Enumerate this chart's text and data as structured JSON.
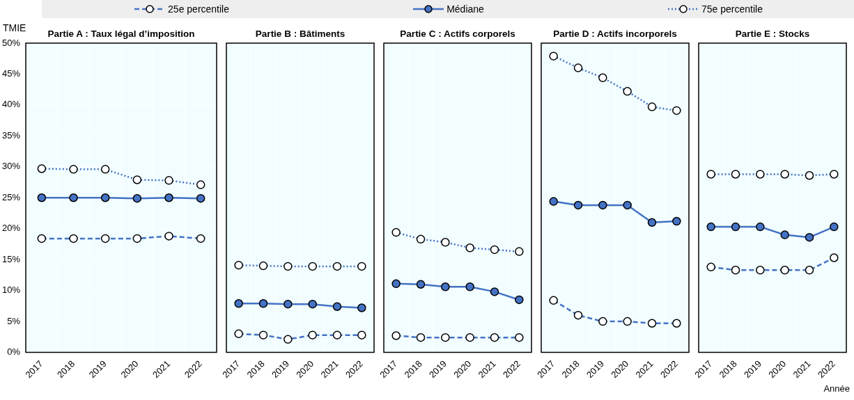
{
  "chart_data": [
    {
      "type": "line",
      "title": "Partie A : Taux légal d’imposition",
      "ylabel": "TMIE",
      "categories": [
        "2017",
        "2018",
        "2019",
        "2020",
        "2021",
        "2022"
      ],
      "legend": "top",
      "marker": "circle",
      "grid": true,
      "ylim": [
        0,
        50
      ],
      "yticks": [
        {
          "value": 0,
          "label": "0%"
        },
        {
          "value": 5,
          "label": "5%"
        },
        {
          "value": 10,
          "label": "10%"
        },
        {
          "value": 15,
          "label": "15%"
        },
        {
          "value": 20,
          "label": "20%"
        },
        {
          "value": 25,
          "label": "25%"
        },
        {
          "value": 30,
          "label": "30%"
        },
        {
          "value": 35,
          "label": "35%"
        },
        {
          "value": 40,
          "label": "40%"
        },
        {
          "value": 45,
          "label": "45%"
        },
        {
          "value": 50,
          "label": "50%"
        }
      ],
      "series": [
        {
          "name": "25e percentile",
          "color": "#4472c4",
          "line_style": "dashed",
          "values": [
            18.4,
            18.4,
            18.4,
            18.4,
            18.8,
            18.4
          ]
        },
        {
          "name": "Médiane",
          "color": "#4472c4",
          "line_style": "solid",
          "values": [
            25.0,
            25.0,
            25.0,
            24.9,
            25.0,
            24.9
          ]
        },
        {
          "name": "75e percentile",
          "color": "#4472c4",
          "line_style": "dotted",
          "values": [
            29.7,
            29.6,
            29.6,
            27.9,
            27.8,
            27.1
          ]
        }
      ]
    },
    {
      "type": "line",
      "title": "Partie B : Bâtiments",
      "categories": [
        "2017",
        "2018",
        "2019",
        "2020",
        "2021",
        "2022"
      ],
      "marker": "circle",
      "grid": true,
      "tick_labels": "x",
      "ylim": [
        0,
        50
      ],
      "series": [
        {
          "color": "#4472c4",
          "line_style": "dashed",
          "values": [
            3.0,
            2.8,
            2.1,
            2.8,
            2.8,
            2.8
          ]
        },
        {
          "color": "#4472c4",
          "line_style": "solid",
          "values": [
            7.9,
            7.9,
            7.8,
            7.8,
            7.4,
            7.2
          ]
        },
        {
          "color": "#4472c4",
          "line_style": "dotted",
          "values": [
            14.1,
            14.0,
            13.9,
            13.9,
            13.9,
            13.9
          ]
        }
      ]
    },
    {
      "type": "line",
      "title": "Partie C : Actifs corporels",
      "categories": [
        "2017",
        "2018",
        "2019",
        "2020",
        "2021",
        "2022"
      ],
      "marker": "circle",
      "grid": true,
      "tick_labels": "x",
      "ylim": [
        0,
        50
      ],
      "series": [
        {
          "color": "#4472c4",
          "line_style": "dashed",
          "values": [
            2.7,
            2.4,
            2.4,
            2.4,
            2.4,
            2.4
          ]
        },
        {
          "color": "#4472c4",
          "line_style": "solid",
          "values": [
            11.1,
            11.0,
            10.6,
            10.6,
            9.8,
            8.5
          ]
        },
        {
          "color": "#4472c4",
          "line_style": "dotted",
          "values": [
            19.4,
            18.3,
            17.8,
            16.9,
            16.6,
            16.3
          ]
        }
      ]
    },
    {
      "type": "line",
      "title": "Partie D : Actifs incorporels",
      "categories": [
        "2017",
        "2018",
        "2019",
        "2020",
        "2021",
        "2022"
      ],
      "marker": "circle",
      "grid": true,
      "tick_labels": "x",
      "ylim": [
        0,
        50
      ],
      "series": [
        {
          "color": "#4472c4",
          "line_style": "dashed",
          "values": [
            8.4,
            6.0,
            5.0,
            5.0,
            4.7,
            4.7
          ]
        },
        {
          "color": "#4472c4",
          "line_style": "solid",
          "values": [
            24.4,
            23.8,
            23.8,
            23.8,
            21.0,
            21.2
          ]
        },
        {
          "color": "#4472c4",
          "line_style": "dotted",
          "values": [
            47.9,
            46.0,
            44.4,
            42.2,
            39.7,
            39.1
          ]
        }
      ]
    },
    {
      "type": "line",
      "title": "Partie E : Stocks",
      "xlabel": "Année",
      "categories": [
        "2017",
        "2018",
        "2019",
        "2020",
        "2021",
        "2022"
      ],
      "marker": "circle",
      "grid": true,
      "tick_labels": "x",
      "ylim": [
        0,
        50
      ],
      "series": [
        {
          "color": "#4472c4",
          "line_style": "dashed",
          "values": [
            13.8,
            13.3,
            13.3,
            13.3,
            13.3,
            15.3
          ]
        },
        {
          "color": "#4472c4",
          "line_style": "solid",
          "values": [
            20.3,
            20.3,
            20.3,
            19.0,
            18.6,
            20.3
          ]
        },
        {
          "color": "#4472c4",
          "line_style": "dotted",
          "values": [
            28.8,
            28.8,
            28.8,
            28.8,
            28.6,
            28.8
          ]
        }
      ]
    }
  ]
}
